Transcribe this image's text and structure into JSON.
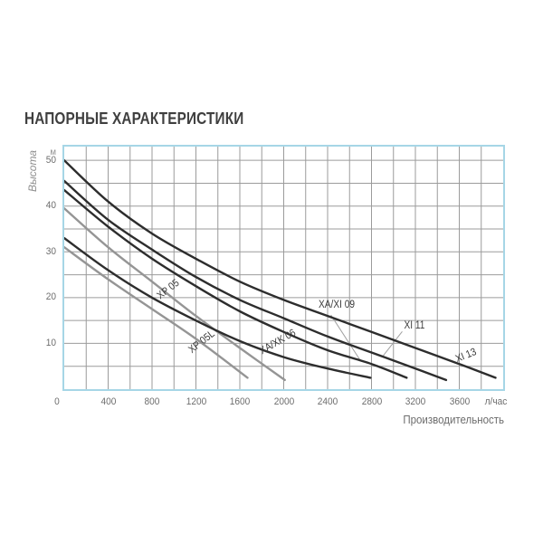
{
  "title": "НАПОРНЫЕ ХАРАКТЕРИСТИКИ",
  "chart_data": {
    "type": "line",
    "title": "НАПОРНЫЕ ХАРАКТЕРИСТИКИ",
    "xlabel": "Производительность",
    "x_unit": "л/час",
    "ylabel": "Высота",
    "y_unit": "м",
    "xlim": [
      0,
      4000
    ],
    "ylim": [
      0,
      53
    ],
    "grid": true,
    "x_grid_step": 200,
    "y_grid_step": 5,
    "x_tick_labels": [
      400,
      800,
      1200,
      1600,
      2000,
      2400,
      2800,
      3200,
      3600
    ],
    "y_tick_labels": [
      10,
      20,
      30,
      40,
      50
    ],
    "origin_label": "0",
    "colors": {
      "curve_dark": "#2d2d2d",
      "curve_gray": "#959595",
      "grid": "#9b9b9b",
      "border": "#a6d6e6",
      "title_text": "#3f3f3f",
      "axis_text": "#6d6d6d",
      "muted_text": "#8f8f8f",
      "leader": "#a0a0a0"
    },
    "series": [
      {
        "name": "XI 13",
        "color": "dark",
        "points": [
          [
            0,
            50
          ],
          [
            400,
            41
          ],
          [
            800,
            34
          ],
          [
            1200,
            28.5
          ],
          [
            1600,
            23.5
          ],
          [
            2000,
            19.5
          ],
          [
            2400,
            16
          ],
          [
            2800,
            12.5
          ],
          [
            3200,
            9
          ],
          [
            3600,
            5.5
          ],
          [
            3930,
            2.5
          ]
        ],
        "label": {
          "x": 3660,
          "y": 7.3,
          "rotate": -22
        }
      },
      {
        "name": "XI 11",
        "color": "dark",
        "points": [
          [
            0,
            45.5
          ],
          [
            400,
            37
          ],
          [
            800,
            30.5
          ],
          [
            1200,
            24.5
          ],
          [
            1600,
            19.5
          ],
          [
            2000,
            15.5
          ],
          [
            2400,
            11.5
          ],
          [
            2800,
            8
          ],
          [
            3200,
            4.5
          ],
          [
            3480,
            2
          ]
        ],
        "label": {
          "x": 3190,
          "y": 13.8,
          "rotate": 0
        }
      },
      {
        "name": "XA/XI 09",
        "color": "dark",
        "points": [
          [
            0,
            43.5
          ],
          [
            400,
            35.5
          ],
          [
            800,
            28.5
          ],
          [
            1200,
            22.5
          ],
          [
            1600,
            17
          ],
          [
            2000,
            12.5
          ],
          [
            2400,
            8.5
          ],
          [
            2800,
            5.5
          ],
          [
            3120,
            2.5
          ]
        ],
        "label": {
          "x": 2480,
          "y": 18.4,
          "rotate": 0
        }
      },
      {
        "name": "XP 05",
        "color": "gray",
        "points": [
          [
            0,
            39.5
          ],
          [
            400,
            31
          ],
          [
            800,
            23.5
          ],
          [
            1200,
            16
          ],
          [
            1600,
            9
          ],
          [
            2010,
            2
          ]
        ],
        "label": {
          "x": 950,
          "y": 21.8,
          "rotate": -38
        }
      },
      {
        "name": "XA/XK 06",
        "color": "dark",
        "points": [
          [
            0,
            33
          ],
          [
            400,
            26
          ],
          [
            800,
            20
          ],
          [
            1200,
            15
          ],
          [
            1600,
            10.5
          ],
          [
            2000,
            7
          ],
          [
            2400,
            4.5
          ],
          [
            2790,
            2.5
          ]
        ],
        "label": {
          "x": 1950,
          "y": 10.2,
          "rotate": -30
        }
      },
      {
        "name": "XP 05L",
        "color": "gray",
        "points": [
          [
            0,
            31
          ],
          [
            400,
            24
          ],
          [
            800,
            17.5
          ],
          [
            1200,
            11
          ],
          [
            1670,
            2.5
          ]
        ],
        "label": {
          "x": 1255,
          "y": 10.3,
          "rotate": -38
        }
      }
    ],
    "leaders": [
      {
        "for": "XA/XI 09",
        "from": [
          2430,
          16.2
        ],
        "to": [
          2700,
          6.2
        ]
      },
      {
        "for": "XI 11",
        "from": [
          3080,
          12.6
        ],
        "to": [
          2900,
          7.1
        ]
      }
    ]
  }
}
